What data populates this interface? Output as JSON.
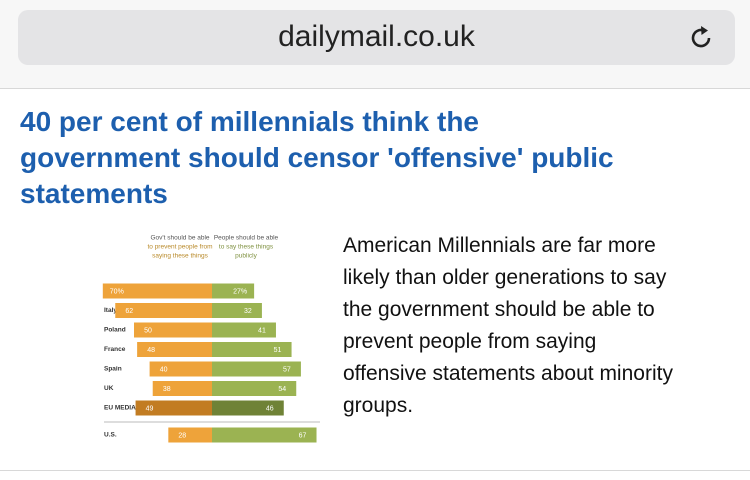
{
  "browser": {
    "url": "dailymail.co.uk"
  },
  "article": {
    "headline": [
      "40 per cent of millennials think the",
      "government should censor 'offensive' public",
      "statements"
    ],
    "body": [
      "American Millennials are far more",
      "likely than older generations to say",
      "the government should be able to",
      "prevent people from saying",
      "offensive statements about minority",
      "groups."
    ]
  },
  "chart": {
    "type": "diverging-bar",
    "left_header": [
      "Gov't should be able",
      "to prevent people from",
      "saying these things"
    ],
    "right_header": [
      "People should be able",
      "to say these things",
      "publicly"
    ],
    "categories": [
      "Germany",
      "Italy",
      "Poland",
      "France",
      "Spain",
      "UK",
      "EU MEDIAN",
      "U.S."
    ],
    "series": [
      {
        "name": "Gov't should be able to prevent people from saying these things",
        "color": "#eea33a",
        "values": [
          70,
          62,
          50,
          48,
          40,
          38,
          49,
          28
        ],
        "value_labels": [
          "70%",
          "62",
          "50",
          "48",
          "40",
          "38",
          "49",
          "28"
        ]
      },
      {
        "name": "People should be able to say these things publicly",
        "color": "#9bb352",
        "values": [
          27,
          32,
          41,
          51,
          57,
          54,
          46,
          67
        ],
        "value_labels": [
          "27%",
          "32",
          "41",
          "51",
          "57",
          "54",
          "46",
          "67"
        ]
      }
    ],
    "highlight_colors": [
      "#c27c22",
      "#6f8236"
    ]
  }
}
